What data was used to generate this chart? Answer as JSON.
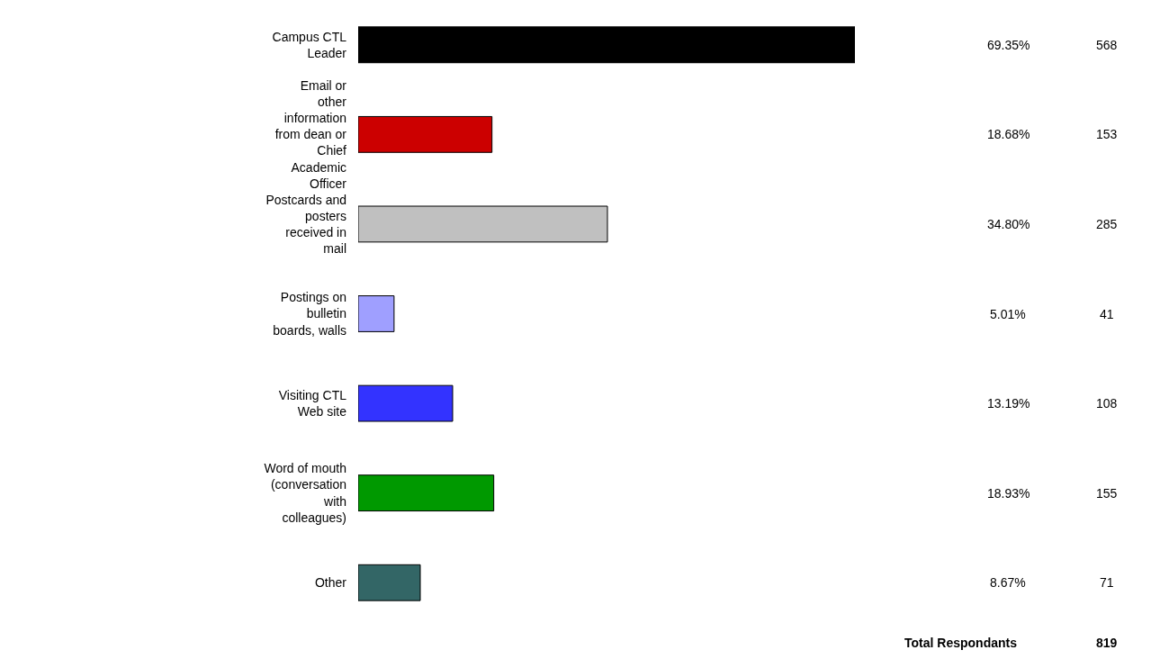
{
  "chart_data": {
    "type": "bar",
    "orientation": "horizontal",
    "categories": [
      "Campus CTL Leader",
      "Email or other information from dean or Chief Academic Officer",
      "Postcards and posters received in mail",
      "Postings on bulletin boards, walls",
      "Visiting CTL Web site",
      "Word of mouth (conversation with colleagues)",
      "Other"
    ],
    "values": [
      69.35,
      18.68,
      34.8,
      5.01,
      13.19,
      18.93,
      8.67
    ],
    "colors": [
      "#000000",
      "#cc0000",
      "#c0c0c0",
      "#9f9fff",
      "#3333ff",
      "#009900",
      "#336666"
    ],
    "value_labels": [
      "69.35%",
      "18.68%",
      "34.80%",
      "5.01%",
      "13.19%",
      "18.93%",
      "8.67%"
    ],
    "annotations": [
      "568",
      "153",
      "285",
      "41",
      "108",
      "155",
      "71",
      "Total Respondants",
      "819"
    ],
    "legend": false
  }
}
